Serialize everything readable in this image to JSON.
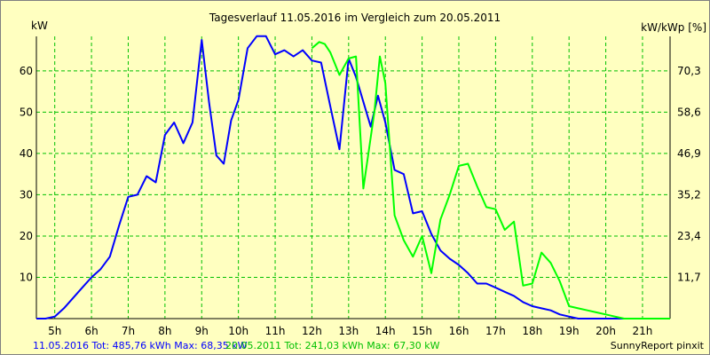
{
  "chart_data": {
    "type": "line",
    "title": "Tagesverlauf 11.05.2016 im Vergleich zum 20.05.2011",
    "ylabel_left": "kW",
    "ylabel_right": "kW/kWp [%]",
    "xlim": [
      4.5,
      21.75
    ],
    "ylim": [
      0,
      68.35
    ],
    "x_ticks": [
      5,
      6,
      7,
      8,
      9,
      10,
      11,
      12,
      13,
      14,
      15,
      16,
      17,
      18,
      19,
      20,
      21
    ],
    "x_tick_labels": [
      "5h",
      "6h",
      "7h",
      "8h",
      "9h",
      "10h",
      "11h",
      "12h",
      "13h",
      "14h",
      "15h",
      "16h",
      "17h",
      "18h",
      "19h",
      "20h",
      "21h"
    ],
    "y_ticks": [
      10,
      20,
      30,
      40,
      50,
      60
    ],
    "y_tick_labels": [
      "10",
      "20",
      "30",
      "40",
      "50",
      "60"
    ],
    "y2_tick_labels": [
      "11,7",
      "23,4",
      "35,2",
      "46,9",
      "58,6",
      "70,3"
    ],
    "grid": true,
    "colors": {
      "background": "#ffffc0",
      "grid": "#00c000",
      "series1": "#0000ff",
      "series2": "#00ff00"
    },
    "series": [
      {
        "name": "11.05.2016",
        "color": "#0000ff",
        "x": [
          4.5,
          4.75,
          5.0,
          5.25,
          5.5,
          5.75,
          6.0,
          6.25,
          6.5,
          6.75,
          7.0,
          7.25,
          7.5,
          7.75,
          8.0,
          8.25,
          8.5,
          8.75,
          9.0,
          9.2,
          9.4,
          9.6,
          9.8,
          10.0,
          10.25,
          10.5,
          10.75,
          11.0,
          11.25,
          11.5,
          11.75,
          12.0,
          12.25,
          12.5,
          12.75,
          13.0,
          13.2,
          13.4,
          13.6,
          13.8,
          14.0,
          14.25,
          14.5,
          14.75,
          15.0,
          15.25,
          15.5,
          15.75,
          16.0,
          16.25,
          16.5,
          16.75,
          17.0,
          17.25,
          17.5,
          17.75,
          18.0,
          18.25,
          18.5,
          18.75,
          19.0,
          19.25,
          19.5,
          19.75,
          20.0,
          20.25,
          20.5
        ],
        "y": [
          0,
          0,
          0.5,
          2.5,
          5,
          7.5,
          10,
          12,
          15,
          22.5,
          29.5,
          30,
          34.5,
          33,
          44.5,
          47.5,
          42.5,
          47.5,
          67.5,
          52.5,
          39.5,
          37.5,
          48,
          53,
          65.5,
          68.4,
          68.4,
          64,
          65,
          63.5,
          65,
          62.5,
          62,
          51.5,
          41,
          63,
          58.5,
          52.5,
          46.5,
          54,
          47.5,
          36,
          35,
          25.5,
          26,
          20.5,
          16.5,
          14.5,
          13,
          11,
          8.5,
          8.5,
          7.5,
          6.5,
          5.5,
          4,
          3,
          2.5,
          2,
          1,
          0.5,
          0,
          0,
          0,
          0,
          0,
          0
        ]
      },
      {
        "name": "20.05.2011",
        "color": "#00ff00",
        "x": [
          12.0,
          12.2,
          12.35,
          12.5,
          12.75,
          13.0,
          13.2,
          13.4,
          13.7,
          13.85,
          14.0,
          14.25,
          14.5,
          14.75,
          15.0,
          15.25,
          15.5,
          15.75,
          16.0,
          16.25,
          16.5,
          16.75,
          17.0,
          17.25,
          17.5,
          17.75,
          18.0,
          18.25,
          18.5,
          18.75,
          19.0,
          19.25,
          19.5,
          19.75,
          20.0,
          20.25,
          20.5,
          20.75,
          21.0,
          21.25,
          21.5,
          21.75
        ],
        "y": [
          65.5,
          67,
          66.5,
          64.5,
          59,
          63,
          63.5,
          31.5,
          50,
          63.5,
          57,
          25,
          19,
          15,
          20,
          11,
          24,
          30,
          37,
          37.5,
          32,
          27,
          26.5,
          21.5,
          23.5,
          8,
          8.5,
          16,
          13.5,
          9,
          3,
          2.5,
          2,
          1.5,
          1,
          0.5,
          0,
          0,
          0,
          0,
          0,
          0
        ]
      }
    ]
  },
  "footer": {
    "series1_summary": "11.05.2016 Tot: 485,76 kWh Max: 68,35 kW",
    "series2_summary": "20.05.2011 Tot: 241,03 kWh Max: 67,30 kW",
    "credit": "SunnyReport pinxit"
  }
}
